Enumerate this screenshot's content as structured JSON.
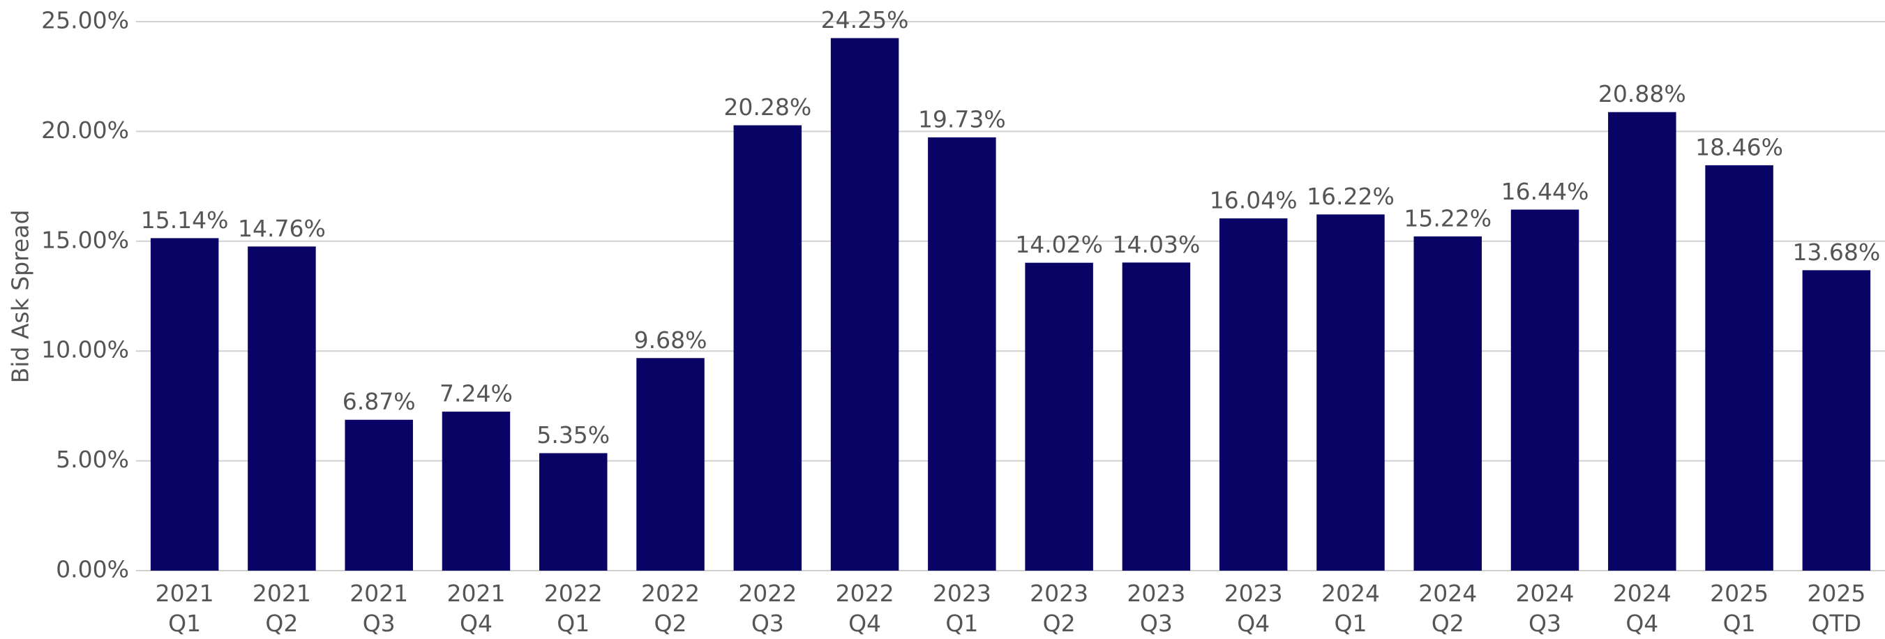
{
  "chart_data": {
    "type": "bar",
    "y_label": "Bid Ask Spread",
    "categories": [
      [
        "2021",
        "Q1"
      ],
      [
        "2021",
        "Q2"
      ],
      [
        "2021",
        "Q3"
      ],
      [
        "2021",
        "Q4"
      ],
      [
        "2022",
        "Q1"
      ],
      [
        "2022",
        "Q2"
      ],
      [
        "2022",
        "Q3"
      ],
      [
        "2022",
        "Q4"
      ],
      [
        "2023",
        "Q1"
      ],
      [
        "2023",
        "Q2"
      ],
      [
        "2023",
        "Q3"
      ],
      [
        "2023",
        "Q4"
      ],
      [
        "2024",
        "Q1"
      ],
      [
        "2024",
        "Q2"
      ],
      [
        "2024",
        "Q3"
      ],
      [
        "2024",
        "Q4"
      ],
      [
        "2025",
        "Q1"
      ],
      [
        "2025",
        "QTD"
      ]
    ],
    "values": [
      15.14,
      14.76,
      6.87,
      7.24,
      5.35,
      9.68,
      20.28,
      24.25,
      19.73,
      14.02,
      14.03,
      16.04,
      16.22,
      15.22,
      16.44,
      20.88,
      18.46,
      13.68
    ],
    "value_labels": [
      "15.14%",
      "14.76%",
      "6.87%",
      "7.24%",
      "5.35%",
      "9.68%",
      "20.28%",
      "24.25%",
      "19.73%",
      "14.02%",
      "14.03%",
      "16.04%",
      "16.22%",
      "15.22%",
      "16.44%",
      "20.88%",
      "18.46%",
      "13.68%"
    ],
    "color": "#0a0366",
    "ylim": [
      0,
      25
    ],
    "yticks": [
      {
        "value": 0,
        "label": "0.00%"
      },
      {
        "value": 5,
        "label": "5.00%"
      },
      {
        "value": 10,
        "label": "10.00%"
      },
      {
        "value": 15,
        "label": "15.00%"
      },
      {
        "value": 20,
        "label": "20.00%"
      },
      {
        "value": 25,
        "label": "25.00%"
      }
    ],
    "grid": true
  }
}
